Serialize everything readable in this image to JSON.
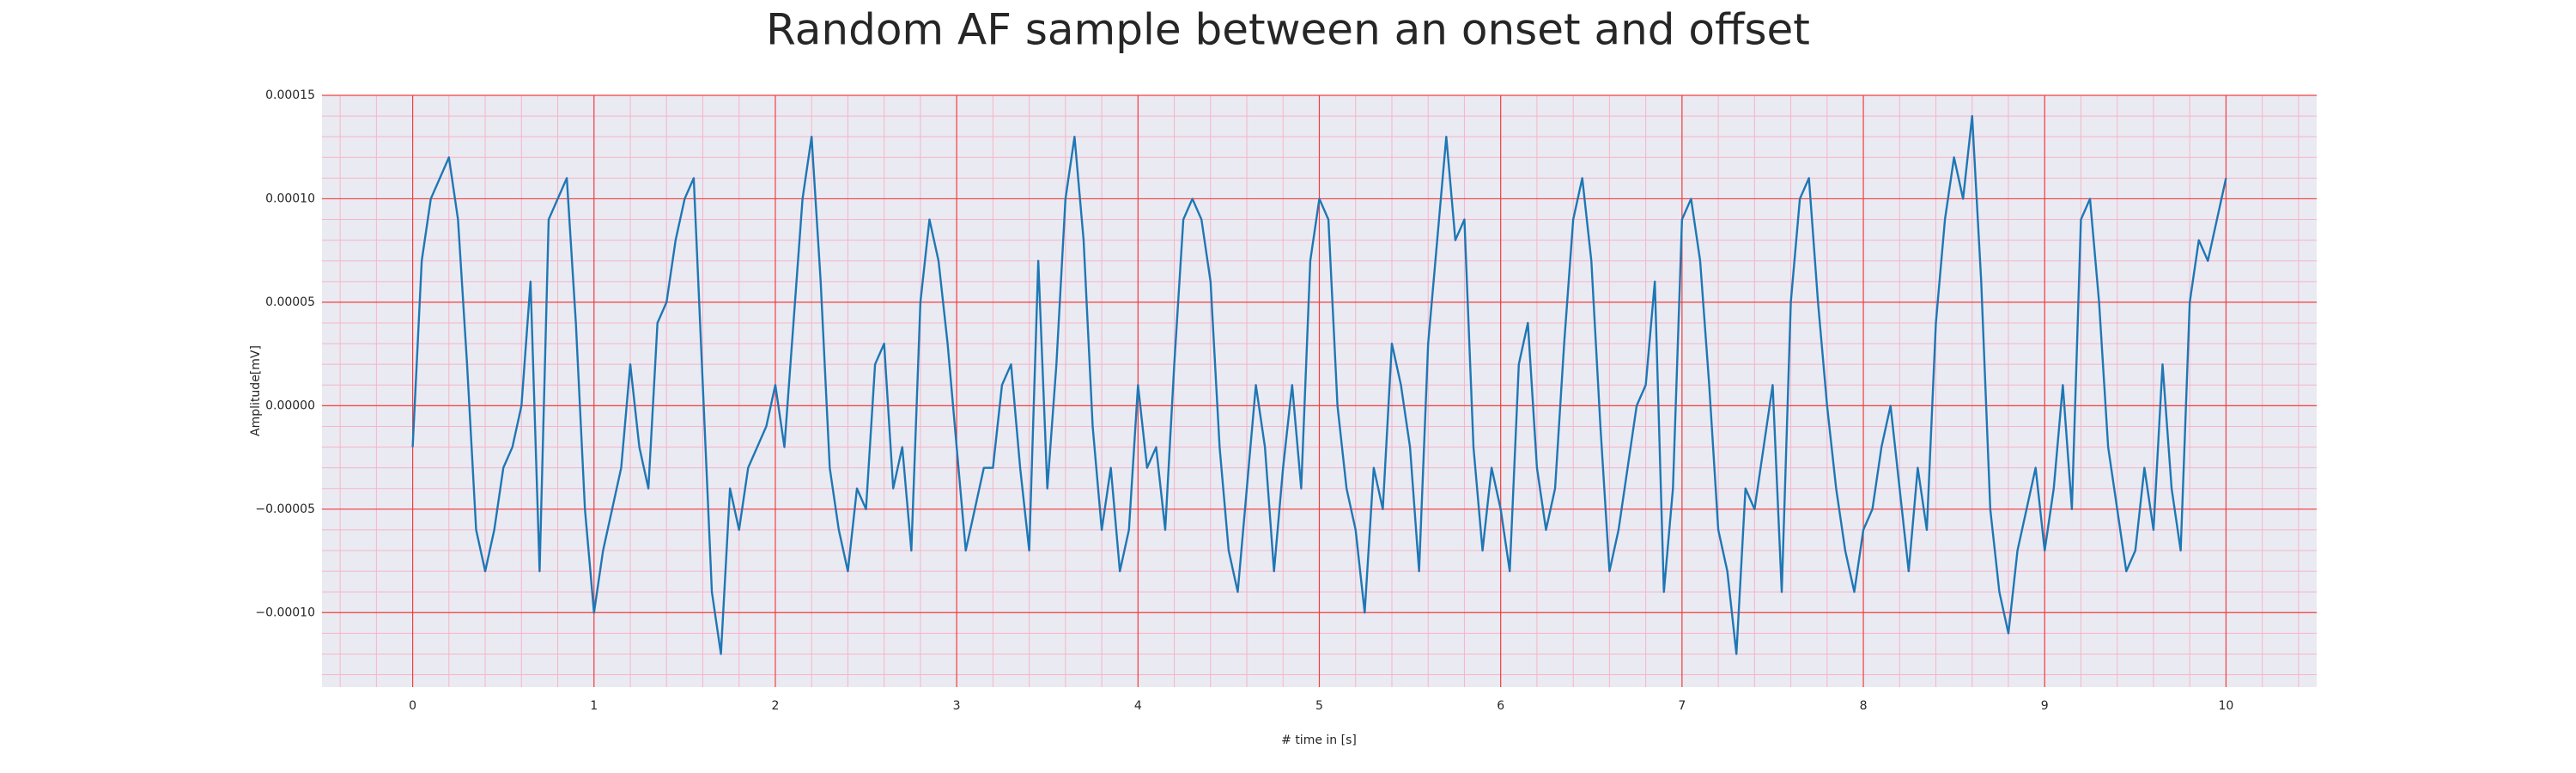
{
  "chart_data": {
    "type": "line",
    "title": "Random AF sample between an onset and offset",
    "xlabel": "# time in [s]",
    "ylabel": "Amplitude[mV]",
    "color": "#1f77b4",
    "grid": true,
    "minor_grid": true,
    "xlim": [
      -0.5,
      10.5
    ],
    "ylim": [
      -0.000136,
      0.00015
    ],
    "xticks": [
      0,
      1,
      2,
      3,
      4,
      5,
      6,
      7,
      8,
      9,
      10
    ],
    "yticks": [
      {
        "value": -0.0001,
        "label": "−0.00010"
      },
      {
        "value": -5e-05,
        "label": "−0.00005"
      },
      {
        "value": 0,
        "label": "0.00000"
      },
      {
        "value": 5e-05,
        "label": "0.00005"
      },
      {
        "value": 0.0001,
        "label": "0.00010"
      },
      {
        "value": 0.00015,
        "label": "0.00015"
      }
    ],
    "x": [
      0,
      0.05,
      0.1,
      0.15,
      0.2,
      0.25,
      0.3,
      0.35,
      0.4,
      0.45,
      0.5,
      0.55,
      0.6,
      0.65,
      0.7,
      0.75,
      0.8,
      0.85,
      0.9,
      0.95,
      1,
      1.05,
      1.1,
      1.15,
      1.2,
      1.25,
      1.3,
      1.35,
      1.4,
      1.45,
      1.5,
      1.55,
      1.6,
      1.65,
      1.7,
      1.75,
      1.8,
      1.85,
      1.9,
      1.95,
      2,
      2.05,
      2.1,
      2.15,
      2.2,
      2.25,
      2.3,
      2.35,
      2.4,
      2.45,
      2.5,
      2.55,
      2.6,
      2.65,
      2.7,
      2.75,
      2.8,
      2.85,
      2.9,
      2.95,
      3,
      3.05,
      3.1,
      3.15,
      3.2,
      3.25,
      3.3,
      3.35,
      3.4,
      3.45,
      3.5,
      3.55,
      3.6,
      3.65,
      3.7,
      3.75,
      3.8,
      3.85,
      3.9,
      3.95,
      4,
      4.05,
      4.1,
      4.15,
      4.2,
      4.25,
      4.3,
      4.35,
      4.4,
      4.45,
      4.5,
      4.55,
      4.6,
      4.65,
      4.7,
      4.75,
      4.8,
      4.85,
      4.9,
      4.95,
      5,
      5.05,
      5.1,
      5.15,
      5.2,
      5.25,
      5.3,
      5.35,
      5.4,
      5.45,
      5.5,
      5.55,
      5.6,
      5.65,
      5.7,
      5.75,
      5.8,
      5.85,
      5.9,
      5.95,
      6,
      6.05,
      6.1,
      6.15,
      6.2,
      6.25,
      6.3,
      6.35,
      6.4,
      6.45,
      6.5,
      6.55,
      6.6,
      6.65,
      6.7,
      6.75,
      6.8,
      6.85,
      6.9,
      6.95,
      7,
      7.05,
      7.1,
      7.15,
      7.2,
      7.25,
      7.3,
      7.35,
      7.4,
      7.45,
      7.5,
      7.55,
      7.6,
      7.65,
      7.7,
      7.75,
      7.8,
      7.85,
      7.9,
      7.95,
      8,
      8.05,
      8.1,
      8.15,
      8.2,
      8.25,
      8.3,
      8.35,
      8.4,
      8.45,
      8.5,
      8.55,
      8.6,
      8.65,
      8.7,
      8.75,
      8.8,
      8.85,
      8.9,
      8.95,
      9,
      9.05,
      9.1,
      9.15,
      9.2,
      9.25,
      9.3,
      9.35,
      9.4,
      9.45,
      9.5,
      9.55,
      9.6,
      9.65,
      9.7,
      9.75,
      9.8,
      9.85,
      9.9,
      9.95,
      10
    ],
    "values": [
      -2e-05,
      7e-05,
      0.0001,
      0.00011,
      0.00012,
      9e-05,
      2e-05,
      -6e-05,
      -8e-05,
      -6e-05,
      -3e-05,
      -2e-05,
      0,
      6e-05,
      -8e-05,
      9e-05,
      0.0001,
      0.00011,
      4e-05,
      -5e-05,
      -0.0001,
      -7e-05,
      -5e-05,
      -3e-05,
      2e-05,
      -2e-05,
      -4e-05,
      4e-05,
      5e-05,
      8e-05,
      0.0001,
      0.00011,
      1e-05,
      -9e-05,
      -0.00012,
      -4e-05,
      -6e-05,
      -3e-05,
      -2e-05,
      -1e-05,
      1e-05,
      -2e-05,
      4e-05,
      0.0001,
      0.00013,
      6e-05,
      -3e-05,
      -6e-05,
      -8e-05,
      -4e-05,
      -5e-05,
      2e-05,
      3e-05,
      -4e-05,
      -2e-05,
      -7e-05,
      5e-05,
      9e-05,
      7e-05,
      3e-05,
      -2e-05,
      -7e-05,
      -5e-05,
      -3e-05,
      -3e-05,
      1e-05,
      2e-05,
      -3e-05,
      -7e-05,
      7e-05,
      -4e-05,
      2e-05,
      0.0001,
      0.00013,
      8e-05,
      -1e-05,
      -6e-05,
      -3e-05,
      -8e-05,
      -6e-05,
      1e-05,
      -3e-05,
      -2e-05,
      -6e-05,
      2e-05,
      9e-05,
      0.0001,
      9e-05,
      6e-05,
      -2e-05,
      -7e-05,
      -9e-05,
      -4e-05,
      1e-05,
      -2e-05,
      -8e-05,
      -3e-05,
      1e-05,
      -4e-05,
      7e-05,
      0.0001,
      9e-05,
      0,
      -4e-05,
      -6e-05,
      -0.0001,
      -3e-05,
      -5e-05,
      3e-05,
      1e-05,
      -2e-05,
      -8e-05,
      3e-05,
      8e-05,
      0.00013,
      8e-05,
      9e-05,
      -2e-05,
      -7e-05,
      -3e-05,
      -5e-05,
      -8e-05,
      2e-05,
      4e-05,
      -3e-05,
      -6e-05,
      -4e-05,
      3e-05,
      9e-05,
      0.00011,
      7e-05,
      -1e-05,
      -8e-05,
      -6e-05,
      -3e-05,
      0,
      1e-05,
      6e-05,
      -9e-05,
      -4e-05,
      9e-05,
      0.0001,
      7e-05,
      1e-05,
      -6e-05,
      -8e-05,
      -0.00012,
      -4e-05,
      -5e-05,
      -2e-05,
      1e-05,
      -9e-05,
      5e-05,
      0.0001,
      0.00011,
      5e-05,
      0,
      -4e-05,
      -7e-05,
      -9e-05,
      -6e-05,
      -5e-05,
      -2e-05,
      0,
      -4e-05,
      -8e-05,
      -3e-05,
      -6e-05,
      4e-05,
      9e-05,
      0.00012,
      0.0001,
      0.00014,
      6e-05,
      -5e-05,
      -9e-05,
      -0.00011,
      -7e-05,
      -5e-05,
      -3e-05,
      -7e-05,
      -4e-05,
      1e-05,
      -5e-05,
      9e-05,
      0.0001,
      5e-05,
      -2e-05,
      -5e-05,
      -8e-05,
      -7e-05,
      -3e-05,
      -6e-05,
      2e-05,
      -4e-05,
      -7e-05,
      5e-05,
      8e-05,
      7e-05,
      9e-05,
      0.00011
    ]
  }
}
